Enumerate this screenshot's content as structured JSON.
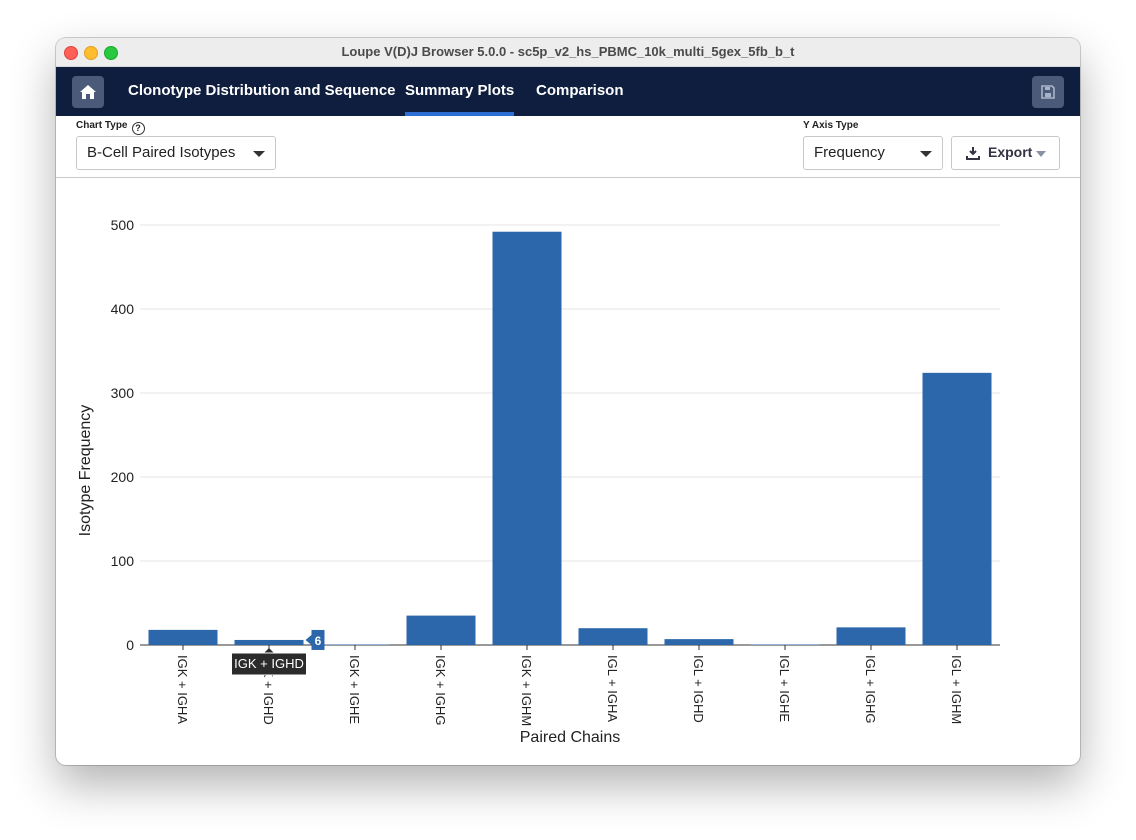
{
  "window": {
    "title": "Loupe V(D)J Browser 5.0.0 - sc5p_v2_hs_PBMC_10k_multi_5gex_5fb_b_t"
  },
  "nav": {
    "home_icon": "home-icon",
    "tabs": [
      {
        "label": "Clonotype Distribution and Sequence",
        "active": false
      },
      {
        "label": "Summary Plots",
        "active": true
      },
      {
        "label": "Comparison",
        "active": false
      }
    ],
    "save_icon": "save-icon"
  },
  "controls": {
    "chart_type_label": "Chart Type",
    "chart_type_value": "B-Cell Paired Isotypes",
    "y_axis_type_label": "Y Axis Type",
    "y_axis_type_value": "Frequency",
    "export_label": "Export"
  },
  "colors": {
    "bar": "#2c67ab",
    "navbar": "#0f1e3e",
    "accent": "#2e6fd4"
  },
  "tooltip": {
    "label": "IGK + IGHD",
    "value": "6"
  },
  "chart_data": {
    "type": "bar",
    "categories": [
      "IGK + IGHA",
      "IGK + IGHD",
      "IGK + IGHE",
      "IGK + IGHG",
      "IGK + IGHM",
      "IGL + IGHA",
      "IGL + IGHD",
      "IGL + IGHE",
      "IGL + IGHG",
      "IGL + IGHM"
    ],
    "values": [
      18,
      6,
      0,
      35,
      492,
      20,
      7,
      0,
      21,
      324
    ],
    "xlabel": "Paired Chains",
    "ylabel": "Isotype Frequency",
    "ylim": [
      0,
      520
    ],
    "yticks": [
      0,
      100,
      200,
      300,
      400,
      500
    ],
    "grid": true
  }
}
